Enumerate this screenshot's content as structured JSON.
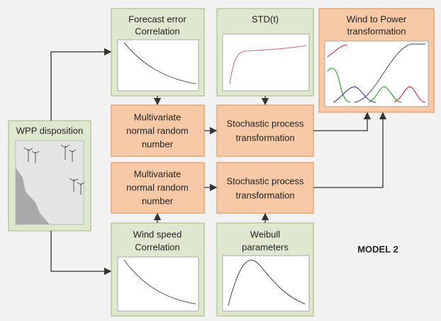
{
  "nodes": [
    {
      "lines": [
        "WPP disposition"
      ]
    },
    {
      "lines": [
        "Forecast error",
        "Correlation"
      ]
    },
    {
      "lines": [
        "STD(t)"
      ]
    },
    {
      "lines": [
        "Wind to Power",
        "transformation"
      ]
    },
    {
      "lines": [
        "Multivariate",
        "normal random",
        "number"
      ]
    },
    {
      "lines": [
        "Stochastic process",
        "transformation"
      ]
    },
    {
      "lines": [
        "Multivariate",
        "normal random",
        "number"
      ]
    },
    {
      "lines": [
        "Stochastic process",
        "transformation"
      ]
    },
    {
      "lines": [
        "Wind speed",
        "Correlation"
      ]
    },
    {
      "lines": [
        "Weibull",
        "parameters"
      ]
    }
  ],
  "model_label": "MODEL 2"
}
